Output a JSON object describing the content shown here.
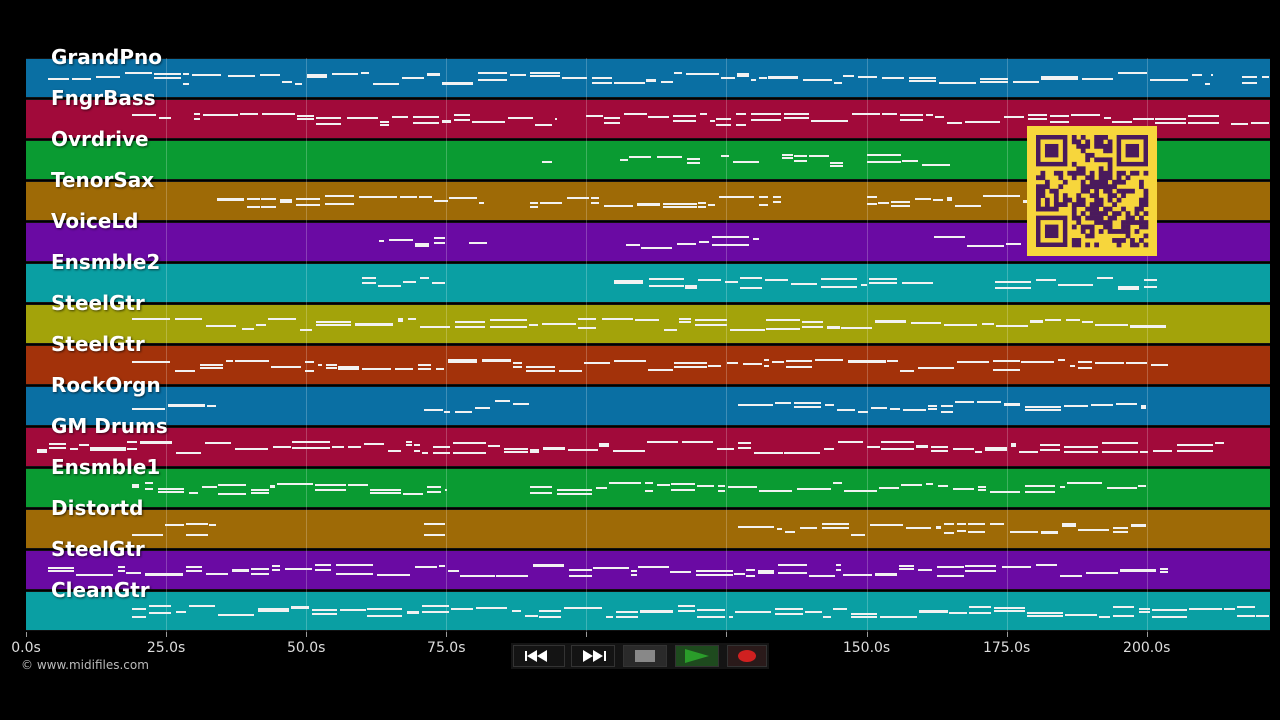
{
  "tracks": [
    {
      "name": "GrandPno",
      "color": "#0a6fa3"
    },
    {
      "name": "FngrBass",
      "color": "#a10a3a"
    },
    {
      "name": "Ovrdrive",
      "color": "#0a9b32"
    },
    {
      "name": "TenorSax",
      "color": "#9e6a06"
    },
    {
      "name": "VoiceLd",
      "color": "#6a0aa3"
    },
    {
      "name": "Ensmble2",
      "color": "#0a9fa3"
    },
    {
      "name": "SteelGtr",
      "color": "#a3a30a"
    },
    {
      "name": "SteelGtr",
      "color": "#a3320a"
    },
    {
      "name": "RockOrgn",
      "color": "#0a6fa3"
    },
    {
      "name": "GM Drums",
      "color": "#a10a3a"
    },
    {
      "name": "Ensmble1",
      "color": "#0a9b32"
    },
    {
      "name": "Distortd",
      "color": "#9e6a06"
    },
    {
      "name": "SteelGtr",
      "color": "#6a0aa3"
    },
    {
      "name": "CleanGtr",
      "color": "#0a9fa3"
    }
  ],
  "timeline": {
    "max_seconds": 222,
    "ticks": [
      {
        "value": 0,
        "label": "0.0s"
      },
      {
        "value": 25,
        "label": "25.0s"
      },
      {
        "value": 50,
        "label": "50.0s"
      },
      {
        "value": 75,
        "label": "75.0s"
      },
      {
        "value": 100,
        "label": ""
      },
      {
        "value": 125,
        "label": ""
      },
      {
        "value": 150,
        "label": "150.0s"
      },
      {
        "value": 175,
        "label": "175.0s"
      },
      {
        "value": 200,
        "label": "200.0s"
      }
    ]
  },
  "note_activity": [
    [
      [
        4,
        35
      ],
      [
        36,
        212
      ],
      [
        217,
        222
      ]
    ],
    [
      [
        19,
        26
      ],
      [
        30,
        95
      ],
      [
        100,
        213
      ],
      [
        215,
        222
      ]
    ],
    [
      [
        92,
        94
      ],
      [
        106,
        121
      ],
      [
        124,
        131
      ],
      [
        135,
        146
      ],
      [
        150,
        165
      ]
    ],
    [
      [
        34,
        82
      ],
      [
        90,
        135
      ],
      [
        150,
        200
      ]
    ],
    [
      [
        63,
        75
      ],
      [
        79,
        83
      ],
      [
        107,
        131
      ],
      [
        162,
        178
      ]
    ],
    [
      [
        60,
        75
      ],
      [
        105,
        120
      ],
      [
        120,
        162
      ],
      [
        173,
        202
      ]
    ],
    [
      [
        19,
        204
      ]
    ],
    [
      [
        19,
        204
      ]
    ],
    [
      [
        19,
        34
      ],
      [
        71,
        90
      ],
      [
        127,
        200
      ]
    ],
    [
      [
        2,
        214
      ]
    ],
    [
      [
        19,
        75
      ],
      [
        90,
        200
      ]
    ],
    [
      [
        19,
        34
      ],
      [
        71,
        75
      ],
      [
        127,
        200
      ]
    ],
    [
      [
        4,
        204
      ]
    ],
    [
      [
        19,
        222
      ]
    ]
  ],
  "transport": {
    "colors": {
      "stop": "#888888",
      "play": "#2a9c2a",
      "record": "#d02020"
    },
    "icons": [
      "rewind-icon",
      "fast-forward-icon",
      "stop-icon",
      "play-icon",
      "record-icon"
    ]
  },
  "footer": {
    "copyright": "© www.midifiles.com"
  }
}
